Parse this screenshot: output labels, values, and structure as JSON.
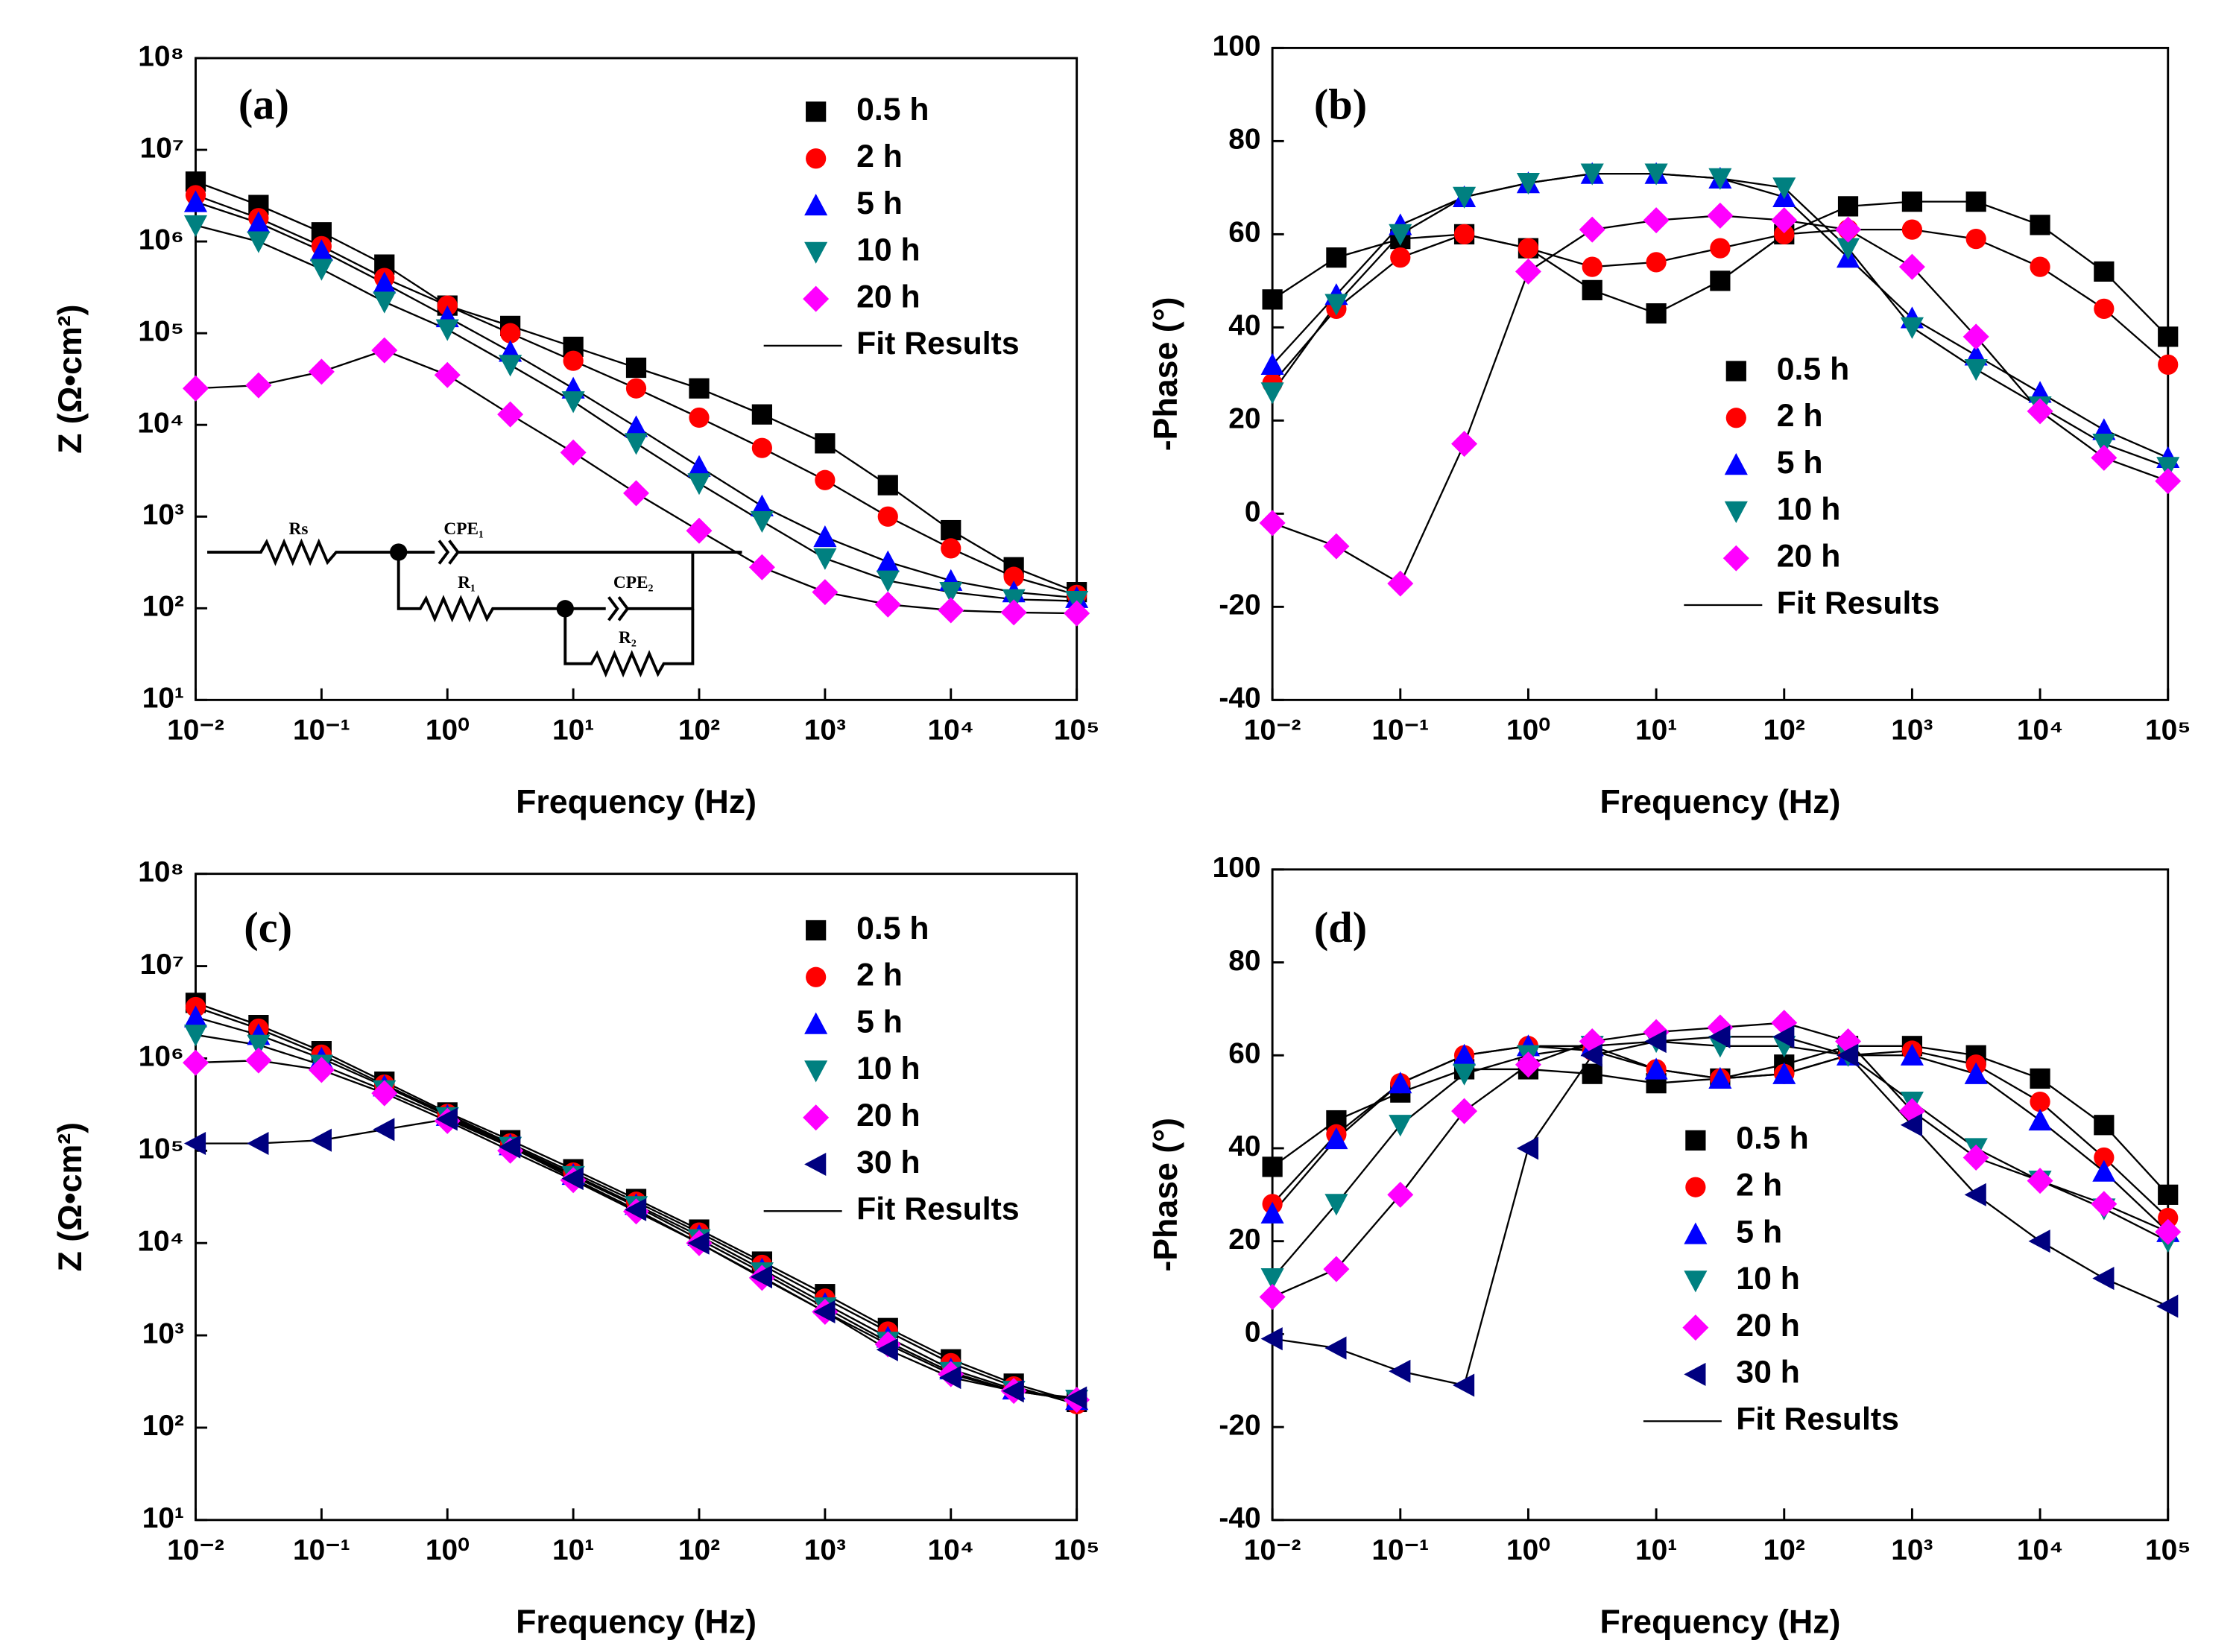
{
  "chart_data": [
    {
      "type": "scatter",
      "panel_label": "(a)",
      "xlabel": "Frequency (Hz)",
      "ylabel": "Z (Ω•cm²)",
      "xlog": true,
      "ylog": true,
      "xlim": [
        0.01,
        100000
      ],
      "ylim": [
        10,
        100000000
      ],
      "xticks": [
        {
          "value": 0.01,
          "label": "10⁻²"
        },
        {
          "value": 0.1,
          "label": "10⁻¹"
        },
        {
          "value": 1,
          "label": "10⁰"
        },
        {
          "value": 10,
          "label": "10¹"
        },
        {
          "value": 100,
          "label": "10²"
        },
        {
          "value": 1000,
          "label": "10³"
        },
        {
          "value": 10000,
          "label": "10⁴"
        },
        {
          "value": 100000,
          "label": "10⁵"
        }
      ],
      "yticks": [
        {
          "value": 10,
          "label": "10¹"
        },
        {
          "value": 100,
          "label": "10²"
        },
        {
          "value": 1000,
          "label": "10³"
        },
        {
          "value": 10000,
          "label": "10⁴"
        },
        {
          "value": 100000,
          "label": "10⁵"
        },
        {
          "value": 1000000,
          "label": "10⁶"
        },
        {
          "value": 10000000,
          "label": "10⁷"
        },
        {
          "value": 100000000,
          "label": "10⁸"
        }
      ],
      "x": [
        0.01,
        0.0316,
        0.1,
        0.316,
        1,
        3.16,
        10,
        31.6,
        100,
        316,
        1000,
        3160,
        10000,
        31600,
        100000
      ],
      "series": [
        {
          "name": "0.5 h",
          "color": "#000000",
          "marker": "square",
          "values": [
            4500000,
            2500000,
            1260000,
            560000,
            200000,
            120000,
            71000,
            42000,
            25000,
            13000,
            6300,
            2200,
            710,
            280,
            150
          ]
        },
        {
          "name": "2 h",
          "color": "#ff0000",
          "marker": "circle",
          "values": [
            3200000,
            1800000,
            890000,
            400000,
            200000,
            100000,
            50000,
            25000,
            12000,
            5600,
            2500,
            1000,
            450,
            220,
            140
          ]
        },
        {
          "name": "5 h",
          "color": "#0000ff",
          "marker": "triangle-up",
          "values": [
            2700000,
            1600000,
            790000,
            350000,
            150000,
            63000,
            25000,
            9500,
            3500,
            1300,
            600,
            320,
            200,
            150,
            130
          ]
        },
        {
          "name": "10 h",
          "color": "#008080",
          "marker": "triangle-down",
          "values": [
            1500000,
            1000000,
            500000,
            220000,
            110000,
            45000,
            18000,
            6300,
            2300,
            890,
            350,
            200,
            150,
            125,
            120
          ]
        },
        {
          "name": "20 h",
          "color": "#ff00ff",
          "marker": "diamond",
          "values": [
            25000,
            27000,
            38000,
            65000,
            35000,
            13000,
            5000,
            1800,
            700,
            280,
            150,
            110,
            95,
            90,
            88
          ]
        }
      ],
      "fit": {
        "name": "Fit Results",
        "color": "#000000"
      },
      "circuit": {
        "rs": "Rs",
        "cpe1": "CPE₁",
        "r1": "R₁",
        "cpe2": "CPE₂",
        "r2": "R₂"
      }
    },
    {
      "type": "scatter",
      "panel_label": "(b)",
      "xlabel": "Frequency (Hz)",
      "ylabel": "-Phase (°)",
      "xlog": true,
      "ylog": false,
      "xlim": [
        0.01,
        100000
      ],
      "ylim": [
        -40,
        100
      ],
      "xticks": [
        {
          "value": 0.01,
          "label": "10⁻²"
        },
        {
          "value": 0.1,
          "label": "10⁻¹"
        },
        {
          "value": 1,
          "label": "10⁰"
        },
        {
          "value": 10,
          "label": "10¹"
        },
        {
          "value": 100,
          "label": "10²"
        },
        {
          "value": 1000,
          "label": "10³"
        },
        {
          "value": 10000,
          "label": "10⁴"
        },
        {
          "value": 100000,
          "label": "10⁵"
        }
      ],
      "yticks": [
        -40,
        -20,
        0,
        20,
        40,
        60,
        80,
        100
      ],
      "x": [
        0.01,
        0.0316,
        0.1,
        0.316,
        1,
        3.16,
        10,
        31.6,
        100,
        316,
        1000,
        3160,
        10000,
        31600,
        100000
      ],
      "series": [
        {
          "name": "0.5 h",
          "color": "#000000",
          "marker": "square",
          "values": [
            46,
            55,
            59,
            60,
            57,
            48,
            43,
            50,
            60,
            66,
            67,
            67,
            62,
            52,
            38
          ]
        },
        {
          "name": "2 h",
          "color": "#ff0000",
          "marker": "circle",
          "values": [
            28,
            44,
            55,
            60,
            57,
            53,
            54,
            57,
            60,
            61,
            61,
            59,
            53,
            44,
            32
          ]
        },
        {
          "name": "5 h",
          "color": "#0000ff",
          "marker": "triangle-up",
          "values": [
            32,
            47,
            62,
            68,
            71,
            73,
            73,
            72,
            68,
            55,
            42,
            34,
            26,
            18,
            12
          ]
        },
        {
          "name": "10 h",
          "color": "#008080",
          "marker": "triangle-down",
          "values": [
            26,
            45,
            60,
            68,
            71,
            73,
            73,
            72,
            70,
            57,
            40,
            31,
            23,
            15,
            10
          ]
        },
        {
          "name": "20 h",
          "color": "#ff00ff",
          "marker": "diamond",
          "values": [
            -2,
            -7,
            -15,
            15,
            52,
            61,
            63,
            64,
            63,
            61,
            53,
            38,
            22,
            12,
            7
          ]
        }
      ],
      "fit": {
        "name": "Fit Results",
        "color": "#000000"
      }
    },
    {
      "type": "scatter",
      "panel_label": "(c)",
      "xlabel": "Frequency (Hz)",
      "ylabel": "Z (Ω•cm²)",
      "xlog": true,
      "ylog": true,
      "xlim": [
        0.01,
        100000
      ],
      "ylim": [
        10,
        100000000
      ],
      "xticks": [
        {
          "value": 0.01,
          "label": "10⁻²"
        },
        {
          "value": 0.1,
          "label": "10⁻¹"
        },
        {
          "value": 1,
          "label": "10⁰"
        },
        {
          "value": 10,
          "label": "10¹"
        },
        {
          "value": 100,
          "label": "10²"
        },
        {
          "value": 1000,
          "label": "10³"
        },
        {
          "value": 10000,
          "label": "10⁴"
        },
        {
          "value": 100000,
          "label": "10⁵"
        }
      ],
      "yticks": [
        {
          "value": 10,
          "label": "10¹"
        },
        {
          "value": 100,
          "label": "10²"
        },
        {
          "value": 1000,
          "label": "10³"
        },
        {
          "value": 10000,
          "label": "10⁴"
        },
        {
          "value": 100000,
          "label": "10⁵"
        },
        {
          "value": 1000000,
          "label": "10⁶"
        },
        {
          "value": 10000000,
          "label": "10⁷"
        },
        {
          "value": 100000000,
          "label": "10⁸"
        }
      ],
      "x": [
        0.01,
        0.0316,
        0.1,
        0.316,
        1,
        3.16,
        10,
        31.6,
        100,
        316,
        1000,
        3160,
        10000,
        31600,
        100000
      ],
      "series": [
        {
          "name": "0.5 h",
          "color": "#000000",
          "marker": "square",
          "values": [
            4000000,
            2300000,
            1200000,
            560000,
            260000,
            130000,
            63000,
            30000,
            14000,
            6300,
            2800,
            1200,
            550,
            300,
            190
          ]
        },
        {
          "name": "2 h",
          "color": "#ff0000",
          "marker": "circle",
          "values": [
            3600000,
            2100000,
            1100000,
            520000,
            250000,
            120000,
            58000,
            28000,
            13000,
            5800,
            2500,
            1100,
            500,
            280,
            180
          ]
        },
        {
          "name": "5 h",
          "color": "#0000ff",
          "marker": "triangle-up",
          "values": [
            2800000,
            1800000,
            1000000,
            500000,
            240000,
            115000,
            55000,
            26000,
            12000,
            5200,
            2200,
            950,
            430,
            260,
            200
          ]
        },
        {
          "name": "10 h",
          "color": "#008080",
          "marker": "triangle-down",
          "values": [
            1800000,
            1400000,
            850000,
            450000,
            230000,
            110000,
            53000,
            25000,
            11000,
            4800,
            2000,
            850,
            400,
            250,
            200
          ]
        },
        {
          "name": "20 h",
          "color": "#ff00ff",
          "marker": "diamond",
          "values": [
            900000,
            950000,
            750000,
            420000,
            210000,
            100000,
            48000,
            22000,
            10000,
            4200,
            1800,
            800,
            380,
            250,
            200
          ]
        },
        {
          "name": "30 h",
          "color": "#000080",
          "marker": "triangle-left",
          "values": [
            120000,
            120000,
            130000,
            170000,
            220000,
            110000,
            50000,
            23000,
            10000,
            4300,
            1800,
            700,
            350,
            250,
            210
          ]
        }
      ],
      "fit": {
        "name": "Fit Results",
        "color": "#000000"
      }
    },
    {
      "type": "scatter",
      "panel_label": "(d)",
      "xlabel": "Frequency (Hz)",
      "ylabel": "-Phase (°)",
      "xlog": true,
      "ylog": false,
      "xlim": [
        0.01,
        100000
      ],
      "ylim": [
        -40,
        100
      ],
      "xticks": [
        {
          "value": 0.01,
          "label": "10⁻²"
        },
        {
          "value": 0.1,
          "label": "10⁻¹"
        },
        {
          "value": 1,
          "label": "10⁰"
        },
        {
          "value": 10,
          "label": "10¹"
        },
        {
          "value": 100,
          "label": "10²"
        },
        {
          "value": 1000,
          "label": "10³"
        },
        {
          "value": 10000,
          "label": "10⁴"
        },
        {
          "value": 100000,
          "label": "10⁵"
        }
      ],
      "yticks": [
        -40,
        -20,
        0,
        20,
        40,
        60,
        80,
        100
      ],
      "x": [
        0.01,
        0.0316,
        0.1,
        0.316,
        1,
        3.16,
        10,
        31.6,
        100,
        316,
        1000,
        3160,
        10000,
        31600,
        100000
      ],
      "series": [
        {
          "name": "0.5 h",
          "color": "#000000",
          "marker": "square",
          "values": [
            36,
            46,
            52,
            57,
            57,
            56,
            54,
            55,
            58,
            62,
            62,
            60,
            55,
            45,
            30
          ]
        },
        {
          "name": "2 h",
          "color": "#ff0000",
          "marker": "circle",
          "values": [
            28,
            43,
            54,
            60,
            62,
            61,
            57,
            55,
            56,
            60,
            61,
            58,
            50,
            38,
            25
          ]
        },
        {
          "name": "5 h",
          "color": "#0000ff",
          "marker": "triangle-up",
          "values": [
            26,
            42,
            54,
            60,
            62,
            62,
            57,
            55,
            56,
            60,
            60,
            56,
            46,
            35,
            22
          ]
        },
        {
          "name": "10 h",
          "color": "#008080",
          "marker": "triangle-down",
          "values": [
            12,
            28,
            45,
            56,
            60,
            62,
            63,
            62,
            62,
            60,
            50,
            40,
            33,
            27,
            20
          ]
        },
        {
          "name": "20 h",
          "color": "#ff00ff",
          "marker": "diamond",
          "values": [
            8,
            14,
            30,
            48,
            58,
            63,
            65,
            66,
            67,
            63,
            48,
            38,
            33,
            28,
            22
          ]
        },
        {
          "name": "30 h",
          "color": "#000080",
          "marker": "triangle-left",
          "values": [
            -1,
            -3,
            -8,
            -11,
            40,
            60,
            63,
            64,
            64,
            60,
            45,
            30,
            20,
            12,
            6
          ]
        }
      ],
      "fit": {
        "name": "Fit Results",
        "color": "#000000"
      }
    }
  ]
}
